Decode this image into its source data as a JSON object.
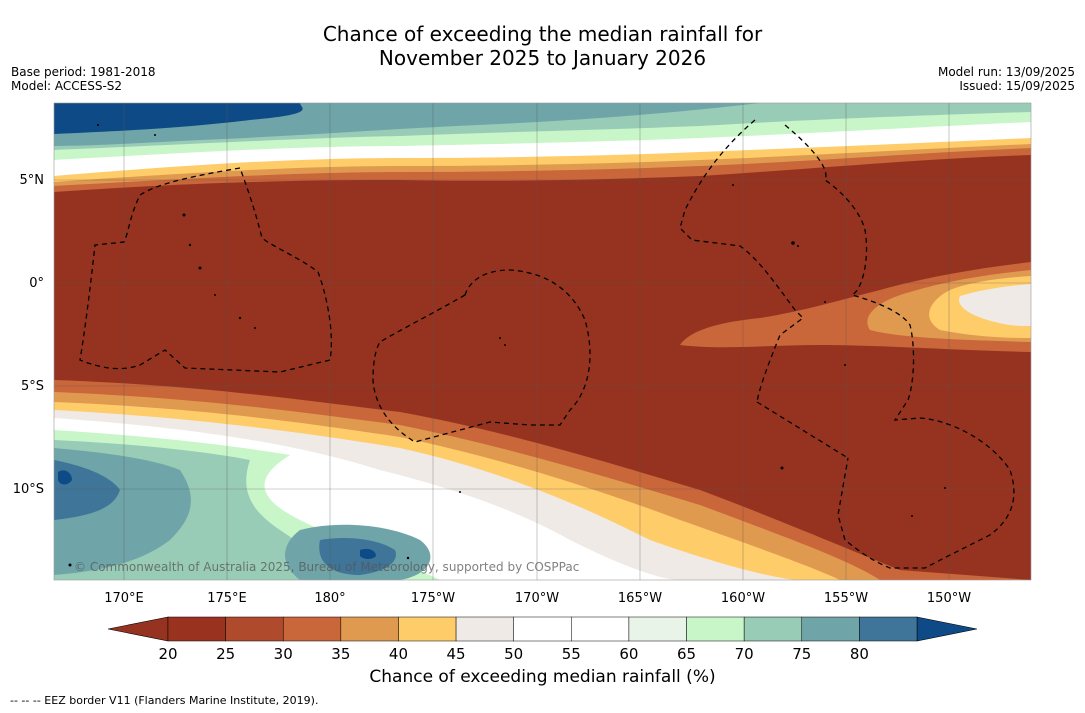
{
  "title": {
    "line1": "Chance of exceeding the median rainfall for",
    "line2": "November 2025 to January 2026"
  },
  "meta_left": {
    "base_period": "Base period: 1981-2018",
    "model": "Model: ACCESS-S2"
  },
  "meta_right": {
    "model_run": "Model run: 13/09/2025",
    "issued": "Issued: 15/09/2025"
  },
  "map": {
    "lon_ticks": [
      "170°E",
      "175°E",
      "180°",
      "175°W",
      "170°W",
      "165°W",
      "160°W",
      "155°W",
      "150°W"
    ],
    "lat_ticks": [
      "5°N",
      "0°",
      "5°S",
      "10°S"
    ],
    "copyright": "© Commonwealth of Australia 2025, Bureau of Meteorology, supported by COSPPac"
  },
  "legend": {
    "ticks": [
      "20",
      "25",
      "30",
      "35",
      "40",
      "45",
      "50",
      "55",
      "60",
      "65",
      "70",
      "75",
      "80"
    ],
    "colors": [
      "#9a3220",
      "#b04a2c",
      "#c9663a",
      "#e09a50",
      "#ffcc6a",
      "#efeae6",
      "#ffffff",
      "#ffffff",
      "#e8f4e8",
      "#c8f6c8",
      "#99ccb6",
      "#6fa5a8",
      "#3f7598"
    ],
    "under_color": "#963320",
    "over_color": "#0e4b86",
    "label": "Chance of exceeding median rainfall (%)"
  },
  "footnote": "-- -- -- EEZ border V11 (Flanders Marine Institute, 2019)."
}
